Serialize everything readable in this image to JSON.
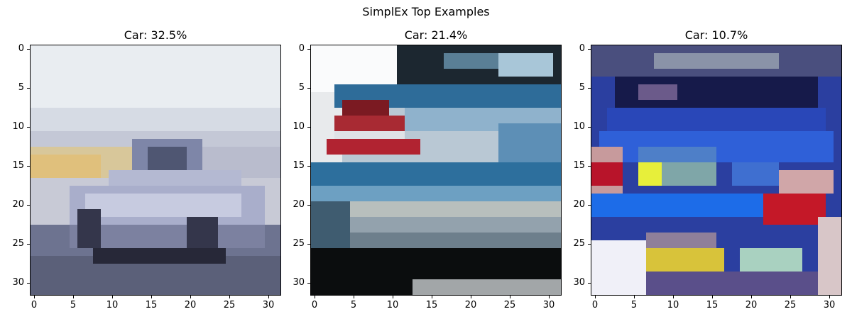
{
  "figure": {
    "title": "SimplEx Top Examples"
  },
  "panels": [
    {
      "title": "Car: 32.5%",
      "image": "pixelated photo of a silver sedan on a pale sky background"
    },
    {
      "title": "Car: 21.4%",
      "image": "pixelated close-up of the rear of a blue car with a red tail light"
    },
    {
      "title": "Car: 10.7%",
      "image": "pixelated close-up of the front of a blue car with yellow and red lights"
    }
  ],
  "x_ticks": [
    "0",
    "5",
    "10",
    "15",
    "20",
    "25",
    "30"
  ],
  "y_ticks": [
    "0",
    "5",
    "10",
    "15",
    "20",
    "25",
    "30"
  ],
  "image_size": [
    32,
    32
  ]
}
